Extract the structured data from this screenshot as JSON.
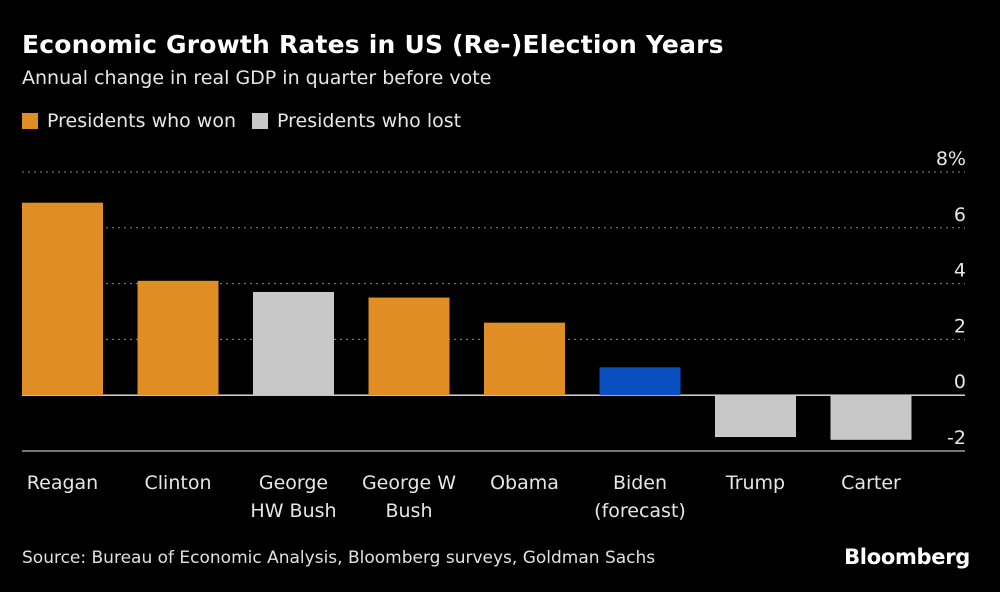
{
  "chart_data": {
    "type": "bar",
    "title": "Economic Growth Rates in US (Re-)Election Years",
    "subtitle": "Annual change in real GDP in quarter before vote",
    "categories": [
      [
        "Reagan"
      ],
      [
        "Clinton"
      ],
      [
        "George",
        "HW Bush"
      ],
      [
        "George W",
        "Bush"
      ],
      [
        "Obama"
      ],
      [
        "Biden",
        "(forecast)"
      ],
      [
        "Trump"
      ],
      [
        "Carter"
      ]
    ],
    "values": [
      6.9,
      4.1,
      3.7,
      3.5,
      2.6,
      1.0,
      -1.5,
      -1.6
    ],
    "groups": [
      "won",
      "won",
      "lost",
      "won",
      "won",
      "forecast",
      "lost",
      "lost"
    ],
    "colors": {
      "won": "#e08e24",
      "lost": "#c8c8c8",
      "forecast": "#0a4fc0"
    },
    "legend": [
      {
        "label": "Presidents who won",
        "color": "#e08e24"
      },
      {
        "label": "Presidents who lost",
        "color": "#c8c8c8"
      }
    ],
    "legend_position": "top-left",
    "ylim": [
      -2,
      8
    ],
    "yticks": [
      -2,
      0,
      2,
      4,
      6,
      8
    ],
    "ytick_labels": [
      "-2",
      "0",
      "2",
      "4",
      "6",
      "8%"
    ],
    "y_axis_position": "right",
    "grid": true
  },
  "source": "Source: Bureau of Economic Analysis, Bloomberg surveys, Goldman Sachs",
  "brand": "Bloomberg"
}
